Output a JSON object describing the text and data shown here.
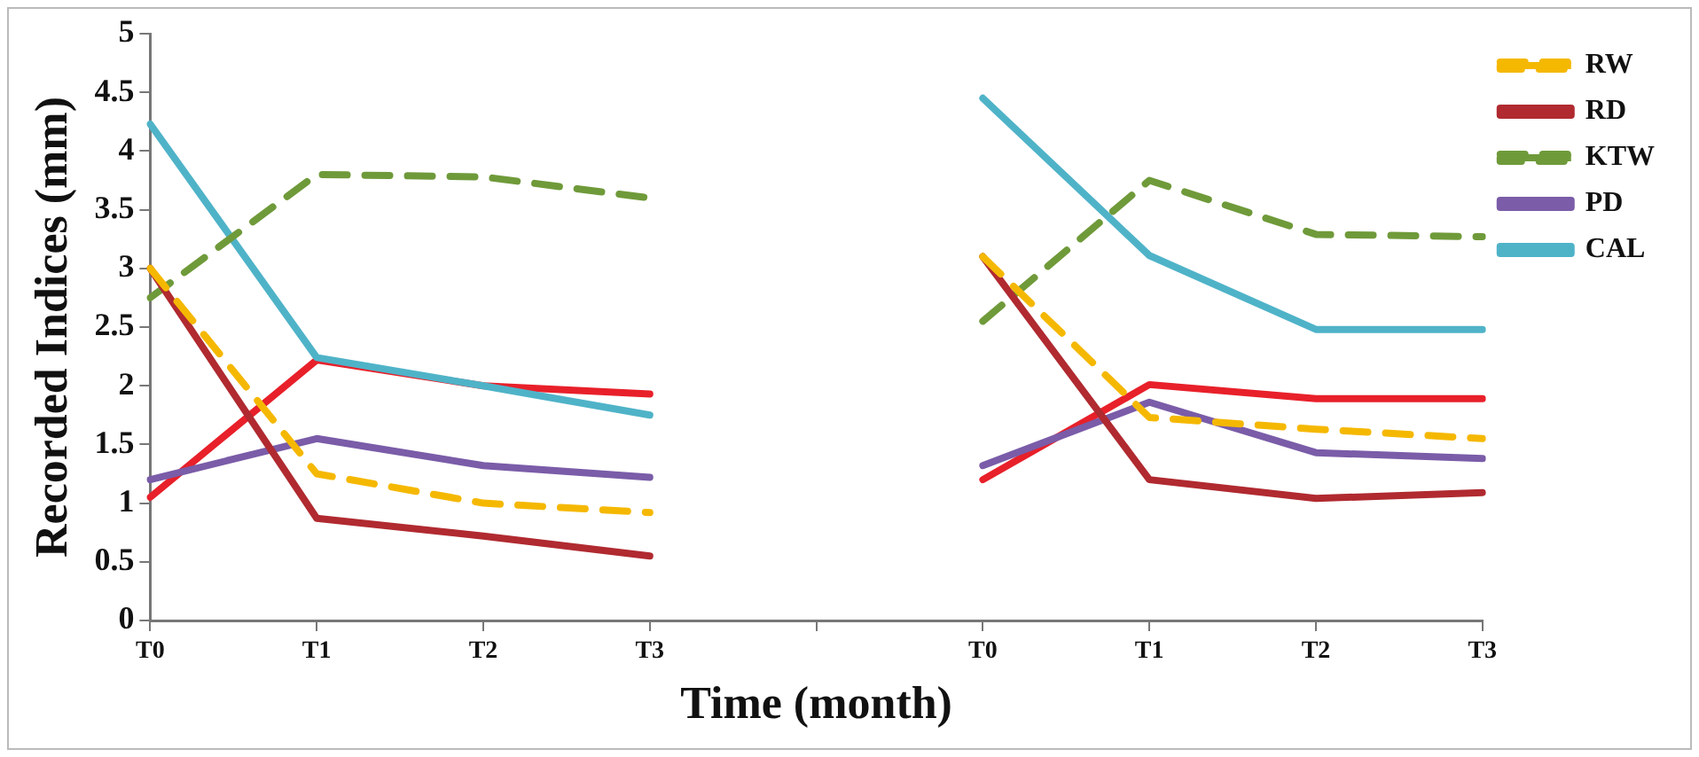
{
  "chart_data": {
    "type": "line",
    "xlabel": "Time (month)",
    "ylabel": "Recorded Indices (mm)",
    "categories": [
      "T0",
      "T1",
      "T2",
      "T3",
      null,
      "T0",
      "T1",
      "T2",
      "T3"
    ],
    "series": [
      {
        "name": "RW",
        "color": "#f5b800",
        "line_style": "dashed",
        "values": [
          3.0,
          1.25,
          1.0,
          0.92,
          null,
          3.1,
          1.73,
          1.63,
          1.55
        ]
      },
      {
        "name": "RD",
        "color": "#b02a30",
        "values": [
          3.0,
          0.87,
          0.72,
          0.55,
          null,
          3.1,
          1.2,
          1.04,
          1.09
        ]
      },
      {
        "name": "KTW",
        "color": "#6f9a3a",
        "line_style": "dashed",
        "values": [
          2.75,
          3.8,
          3.78,
          3.6,
          null,
          2.55,
          3.75,
          3.29,
          3.27
        ]
      },
      {
        "name": "PD",
        "color": "#7a5ca8",
        "values": [
          1.2,
          1.55,
          1.32,
          1.22,
          null,
          1.32,
          1.86,
          1.43,
          1.38
        ]
      },
      {
        "name": "CAL",
        "color": "#4fb3c8",
        "values": [
          4.23,
          2.24,
          2.0,
          1.75,
          null,
          4.45,
          3.11,
          2.48,
          2.48
        ]
      },
      {
        "color": "#e8202a",
        "values": [
          1.05,
          2.22,
          2.0,
          1.93,
          null,
          1.2,
          2.01,
          1.89,
          1.89
        ]
      }
    ],
    "ylim": [
      0,
      5
    ],
    "yticks": [
      0,
      0.5,
      1,
      1.5,
      2,
      2.5,
      3,
      3.5,
      4,
      4.5,
      5
    ],
    "grid": false,
    "legend": "top right",
    "marker": "none"
  }
}
